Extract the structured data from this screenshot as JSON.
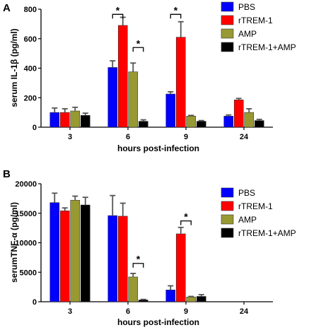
{
  "chart_data": [
    {
      "type": "bar",
      "panel": "A",
      "xlabel": "hours post-infection",
      "ylabel": "serum IL-1β (pg/ml)",
      "categories": [
        "3",
        "6",
        "9",
        "24"
      ],
      "ylim": [
        0,
        800
      ],
      "yticks": [
        0,
        200,
        400,
        600,
        800
      ],
      "legend": "right",
      "series": [
        {
          "name": "PBS",
          "color": "#0000ff",
          "values": [
            100,
            405,
            225,
            75
          ],
          "errors": [
            30,
            45,
            15,
            8
          ]
        },
        {
          "name": "rTREM-1",
          "color": "#ff0000",
          "values": [
            100,
            690,
            610,
            185
          ],
          "errors": [
            25,
            55,
            105,
            10
          ]
        },
        {
          "name": "AMP",
          "color": "#999933",
          "values": [
            110,
            375,
            75,
            100
          ],
          "errors": [
            25,
            60,
            5,
            25
          ]
        },
        {
          "name": "rTREM-1+AMP",
          "color": "#000000",
          "values": [
            80,
            40,
            40,
            45
          ],
          "errors": [
            15,
            10,
            5,
            8
          ]
        }
      ],
      "significance": [
        {
          "label": "*",
          "category": "6",
          "from_series": 0,
          "to_series": 1,
          "y": 765
        },
        {
          "label": "*",
          "category": "6",
          "from_series": 2,
          "to_series": 3,
          "y": 540
        },
        {
          "label": "*",
          "category": "9",
          "from_series": 0,
          "to_series": 1,
          "y": 765
        }
      ]
    },
    {
      "type": "bar",
      "panel": "B",
      "xlabel": "hours post-infection",
      "ylabel": "serumTNF-α (pg/ml)",
      "categories": [
        "3",
        "6",
        "9",
        "24"
      ],
      "ylim": [
        0,
        20000
      ],
      "yticks": [
        0,
        5000,
        10000,
        15000,
        20000
      ],
      "legend": "right",
      "series": [
        {
          "name": "PBS",
          "color": "#0000ff",
          "values": [
            16800,
            14600,
            2000,
            0
          ],
          "errors": [
            1600,
            3400,
            700,
            0
          ]
        },
        {
          "name": "rTREM-1",
          "color": "#ff0000",
          "values": [
            15400,
            14500,
            11500,
            0
          ],
          "errors": [
            500,
            2200,
            1100,
            0
          ]
        },
        {
          "name": "AMP",
          "color": "#999933",
          "values": [
            17200,
            4200,
            800,
            0
          ],
          "errors": [
            700,
            600,
            100,
            0
          ]
        },
        {
          "name": "rTREM-1+AMP",
          "color": "#000000",
          "values": [
            16400,
            300,
            900,
            0
          ],
          "errors": [
            1300,
            100,
            300,
            0
          ]
        }
      ],
      "significance": [
        {
          "label": "*",
          "category": "6",
          "from_series": 2,
          "to_series": 3,
          "y": 6500
        },
        {
          "label": "*",
          "category": "9",
          "from_series": 1,
          "to_series": 2,
          "y": 13700
        }
      ]
    }
  ]
}
